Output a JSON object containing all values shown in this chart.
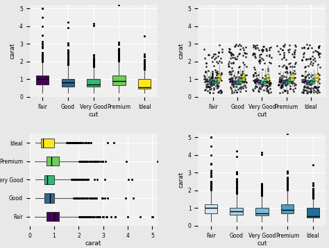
{
  "categories": [
    "Fair",
    "Good",
    "Very Good",
    "Premium",
    "Ideal"
  ],
  "colors_viridis": [
    "#440154",
    "#31688e",
    "#35b779",
    "#6ece58",
    "#fde725"
  ],
  "blues": [
    "#d0e8f5",
    "#a8cfe0",
    "#7eb8d4",
    "#4f9ec4",
    "#1e6fa0"
  ],
  "clarity_colors": [
    "#440154",
    "#31688e",
    "#21918c",
    "#35b779",
    "#fde725"
  ],
  "bg_color": "#f0f0f0",
  "grid_color": "#ffffff",
  "fig_bg": "#e8e8e8",
  "box_stats": {
    "Fair": {
      "whislo": 0.22,
      "q1": 0.7,
      "med": 1.0,
      "q3": 1.2,
      "whishi": 2.01
    },
    "Good": {
      "whislo": 0.23,
      "q1": 0.6,
      "med": 0.82,
      "q3": 1.01,
      "whishi": 1.8
    },
    "Very Good": {
      "whislo": 0.23,
      "q1": 0.59,
      "med": 0.71,
      "q3": 1.01,
      "whishi": 1.7
    },
    "Premium": {
      "whislo": 0.22,
      "q1": 0.68,
      "med": 0.9,
      "q3": 1.2,
      "whishi": 2.01
    },
    "Ideal": {
      "whislo": 0.23,
      "q1": 0.46,
      "med": 0.54,
      "q3": 1.0,
      "whishi": 1.5
    }
  },
  "clarity_offsets": [
    -0.25,
    -0.12,
    0.0,
    0.12,
    0.25
  ],
  "clarity_q1s": [
    0.8,
    0.7,
    0.65,
    0.75,
    0.9
  ],
  "clarity_meds": [
    0.9,
    0.82,
    0.75,
    0.9,
    1.1
  ],
  "clarity_q3s": [
    1.0,
    0.95,
    0.9,
    1.05,
    1.3
  ]
}
